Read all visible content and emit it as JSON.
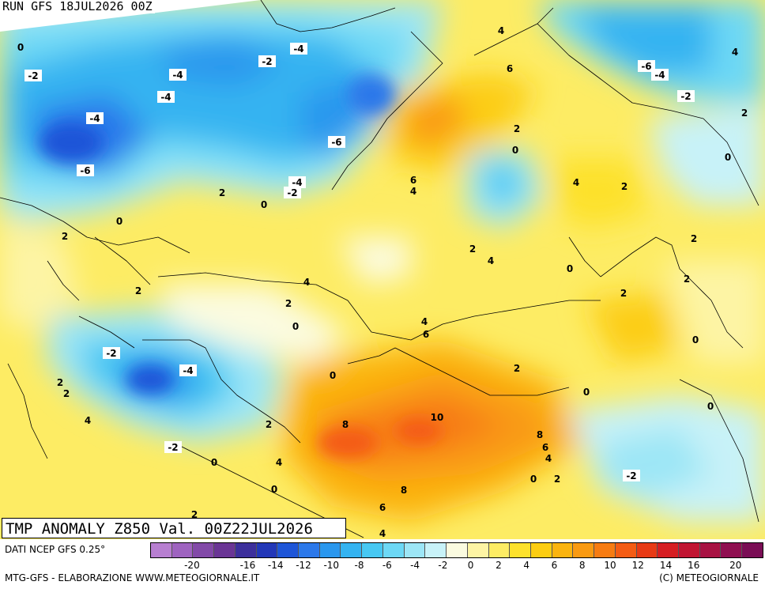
{
  "run_label": "RUN GFS 18JUL2026 00Z",
  "title": "TMP ANOMALY Z850 Val. 00Z22JUL2026",
  "source": "DATI NCEP GFS 0.25°",
  "credit": "MTG-GFS - ELABORAZIONE WWW.METEOGIORNALE.IT",
  "copyright": "(C) METEOGIORNALE",
  "colorbar": {
    "colors": [
      "#b77fd1",
      "#9e63c0",
      "#8249a8",
      "#6a3595",
      "#3c2f9c",
      "#2237b8",
      "#1e55d8",
      "#2c78ea",
      "#2a97ee",
      "#34b3f1",
      "#47c8f3",
      "#6dd8f5",
      "#9de6f6",
      "#c8f2f8",
      "#fbfbe0",
      "#fdf4a4",
      "#fdec64",
      "#fde12c",
      "#fccd12",
      "#fbb410",
      "#f99a12",
      "#f77c12",
      "#f45c14",
      "#e83a15",
      "#d61e22",
      "#c11532",
      "#a81243",
      "#8f0f51",
      "#7a0d55"
    ],
    "labels": [
      "-20",
      "-16",
      "-14",
      "-12",
      "-10",
      "-8",
      "-6",
      "-4",
      "-2",
      "0",
      "2",
      "4",
      "6",
      "8",
      "10",
      "12",
      "14",
      "16",
      "20"
    ]
  },
  "map_values": [
    {
      "t": "0"
    },
    {
      "t": "-2"
    },
    {
      "t": "-4"
    },
    {
      "t": "-2"
    },
    {
      "t": "-4"
    },
    {
      "t": "-4"
    },
    {
      "t": "4"
    },
    {
      "t": "6"
    },
    {
      "t": "-6"
    },
    {
      "t": "-4"
    },
    {
      "t": "4"
    },
    {
      "t": "-2"
    },
    {
      "t": "2"
    },
    {
      "t": "-4"
    },
    {
      "t": "-6"
    },
    {
      "t": "2"
    },
    {
      "t": "0"
    },
    {
      "t": "0"
    },
    {
      "t": "-6"
    },
    {
      "t": "-4"
    },
    {
      "t": "-2"
    },
    {
      "t": "2"
    },
    {
      "t": "0"
    },
    {
      "t": "6"
    },
    {
      "t": "4"
    },
    {
      "t": "4"
    },
    {
      "t": "2"
    },
    {
      "t": "0"
    },
    {
      "t": "2"
    },
    {
      "t": "2"
    },
    {
      "t": "2"
    },
    {
      "t": "4"
    },
    {
      "t": "0"
    },
    {
      "t": "2"
    },
    {
      "t": "2"
    },
    {
      "t": "4"
    },
    {
      "t": "2"
    },
    {
      "t": "0"
    },
    {
      "t": "2"
    },
    {
      "t": "4"
    },
    {
      "t": "6"
    },
    {
      "t": "0"
    },
    {
      "t": "-2"
    },
    {
      "t": "-4"
    },
    {
      "t": "2"
    },
    {
      "t": "2"
    },
    {
      "t": "0"
    },
    {
      "t": "2"
    },
    {
      "t": "0"
    },
    {
      "t": "4"
    },
    {
      "t": "10"
    },
    {
      "t": "0"
    },
    {
      "t": "8"
    },
    {
      "t": "2"
    },
    {
      "t": "8"
    },
    {
      "t": "-2"
    },
    {
      "t": "6"
    },
    {
      "t": "0"
    },
    {
      "t": "4"
    },
    {
      "t": "4"
    },
    {
      "t": "0"
    },
    {
      "t": "2"
    },
    {
      "t": "-2"
    },
    {
      "t": "0"
    },
    {
      "t": "8"
    },
    {
      "t": "6"
    },
    {
      "t": "2"
    },
    {
      "t": "4"
    }
  ]
}
